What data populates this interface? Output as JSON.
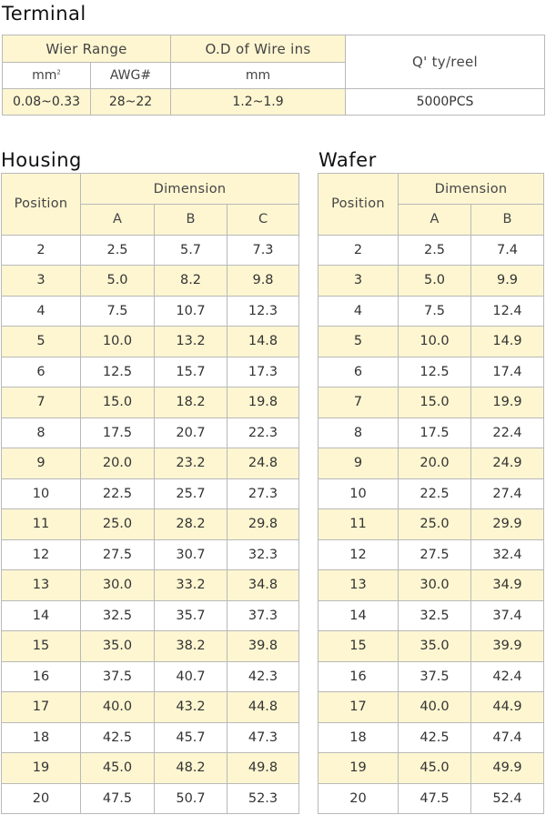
{
  "terminal": {
    "title": "Terminal",
    "headers": {
      "wire_range": "Wier Range",
      "od_wire_ins": "O.D of Wire ins",
      "qty_reel": "Q' ty/reel",
      "mm_unit": "mm",
      "mm_sup": "2",
      "awg": "AWG#",
      "od_unit": "mm"
    },
    "row": {
      "mm2_value": "0.08~0.33",
      "awg_value": "28~22",
      "od_value": "1.2~1.9",
      "qty_value": "5000PCS"
    }
  },
  "housing": {
    "title": "Housing",
    "headers": {
      "position": "Position",
      "dimension": "Dimension",
      "a": "A",
      "b": "B",
      "c": "C"
    },
    "rows": [
      [
        "2",
        "2.5",
        "5.7",
        "7.3"
      ],
      [
        "3",
        "5.0",
        "8.2",
        "9.8"
      ],
      [
        "4",
        "7.5",
        "10.7",
        "12.3"
      ],
      [
        "5",
        "10.0",
        "13.2",
        "14.8"
      ],
      [
        "6",
        "12.5",
        "15.7",
        "17.3"
      ],
      [
        "7",
        "15.0",
        "18.2",
        "19.8"
      ],
      [
        "8",
        "17.5",
        "20.7",
        "22.3"
      ],
      [
        "9",
        "20.0",
        "23.2",
        "24.8"
      ],
      [
        "10",
        "22.5",
        "25.7",
        "27.3"
      ],
      [
        "11",
        "25.0",
        "28.2",
        "29.8"
      ],
      [
        "12",
        "27.5",
        "30.7",
        "32.3"
      ],
      [
        "13",
        "30.0",
        "33.2",
        "34.8"
      ],
      [
        "14",
        "32.5",
        "35.7",
        "37.3"
      ],
      [
        "15",
        "35.0",
        "38.2",
        "39.8"
      ],
      [
        "16",
        "37.5",
        "40.7",
        "42.3"
      ],
      [
        "17",
        "40.0",
        "43.2",
        "44.8"
      ],
      [
        "18",
        "42.5",
        "45.7",
        "47.3"
      ],
      [
        "19",
        "45.0",
        "48.2",
        "49.8"
      ],
      [
        "20",
        "47.5",
        "50.7",
        "52.3"
      ]
    ]
  },
  "wafer": {
    "title": "Wafer",
    "headers": {
      "position": "Position",
      "dimension": "Dimension",
      "a": "A",
      "b": "B"
    },
    "rows": [
      [
        "2",
        "2.5",
        "7.4"
      ],
      [
        "3",
        "5.0",
        "9.9"
      ],
      [
        "4",
        "7.5",
        "12.4"
      ],
      [
        "5",
        "10.0",
        "14.9"
      ],
      [
        "6",
        "12.5",
        "17.4"
      ],
      [
        "7",
        "15.0",
        "19.9"
      ],
      [
        "8",
        "17.5",
        "22.4"
      ],
      [
        "9",
        "20.0",
        "24.9"
      ],
      [
        "10",
        "22.5",
        "27.4"
      ],
      [
        "11",
        "25.0",
        "29.9"
      ],
      [
        "12",
        "27.5",
        "32.4"
      ],
      [
        "13",
        "30.0",
        "34.9"
      ],
      [
        "14",
        "32.5",
        "37.4"
      ],
      [
        "15",
        "35.0",
        "39.9"
      ],
      [
        "16",
        "37.5",
        "42.4"
      ],
      [
        "17",
        "40.0",
        "44.9"
      ],
      [
        "18",
        "42.5",
        "47.4"
      ],
      [
        "19",
        "45.0",
        "49.9"
      ],
      [
        "20",
        "47.5",
        "52.4"
      ]
    ]
  }
}
